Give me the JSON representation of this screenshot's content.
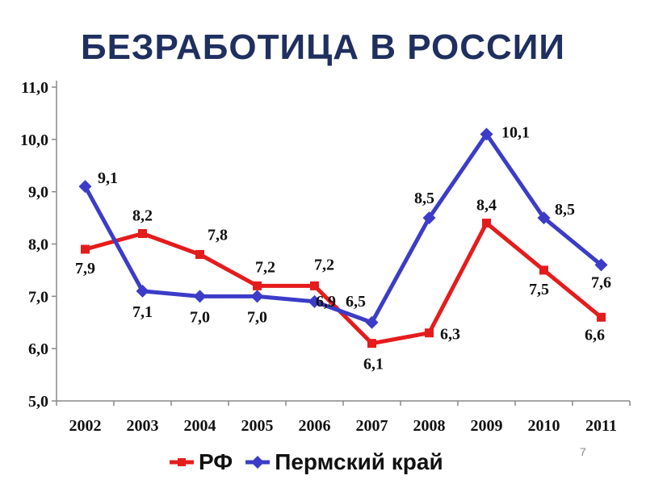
{
  "slide": {
    "page_number": "7"
  },
  "chart_data": {
    "type": "line",
    "title": "БЕЗРАБОТИЦА В РОССИИ",
    "xlabel": "",
    "ylabel": "",
    "categories": [
      "2002",
      "2003",
      "2004",
      "2005",
      "2006",
      "2007",
      "2008",
      "2009",
      "2010",
      "2011"
    ],
    "ylim": [
      5.0,
      11.0
    ],
    "yticks": [
      "5,0",
      "6,0",
      "7,0",
      "8,0",
      "9,0",
      "10,0",
      "11,0"
    ],
    "grid": false,
    "legend_position": "bottom",
    "series": [
      {
        "name": "РФ",
        "color": "#e51c1c",
        "marker": "square",
        "values": [
          7.9,
          8.2,
          7.8,
          7.2,
          7.2,
          6.1,
          6.3,
          8.4,
          7.5,
          6.6
        ],
        "labels": [
          "7,9",
          "8,2",
          "7,8",
          "7,2",
          "7,2",
          "6,1",
          "6,3",
          "8,4",
          "7,5",
          "6,6"
        ]
      },
      {
        "name": "Пермский край",
        "color": "#3c3cc8",
        "marker": "diamond",
        "values": [
          9.1,
          7.1,
          7.0,
          7.0,
          6.9,
          6.5,
          8.5,
          10.1,
          8.5,
          7.6
        ],
        "labels": [
          "9,1",
          "7,1",
          "7,0",
          "7,0",
          "6,9",
          "6,5",
          "8,5",
          "10,1",
          "8,5",
          "7,6"
        ]
      }
    ]
  }
}
